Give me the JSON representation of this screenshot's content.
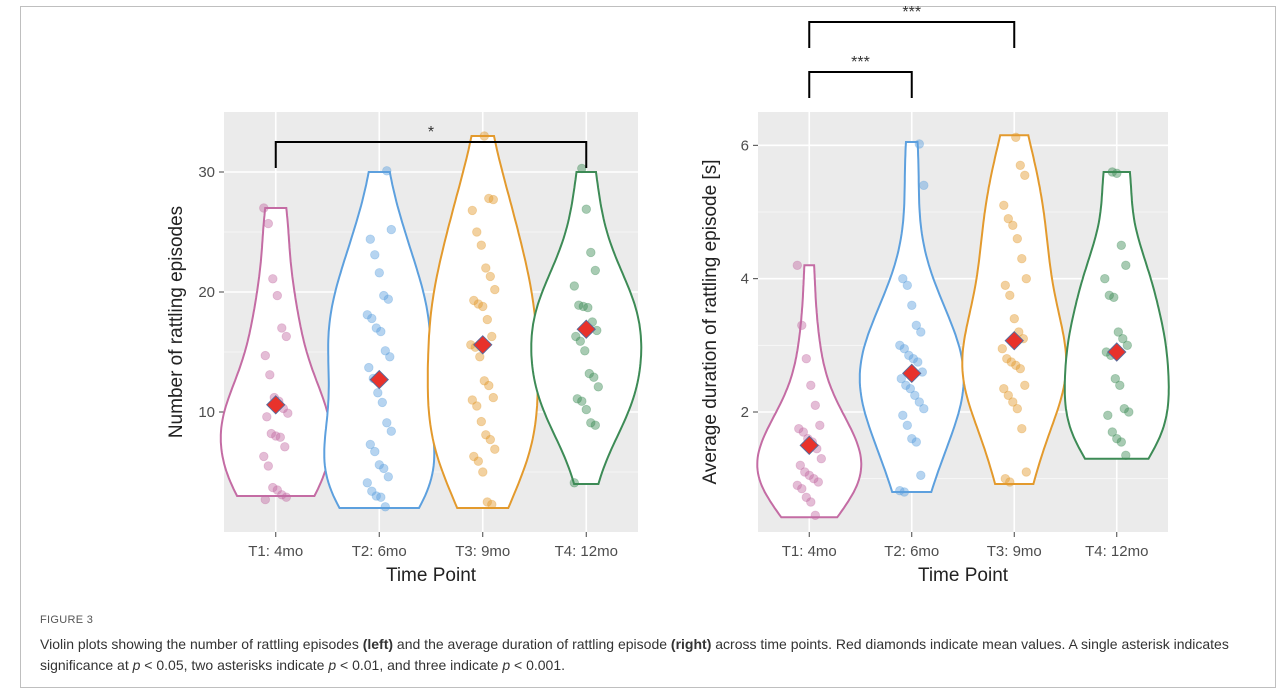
{
  "figure": {
    "label": "FIGURE 3",
    "caption": {
      "p1": "Violin plots showing the number of rattling episodes ",
      "b1": "(left)",
      "p2": " and the average duration of rattling episode ",
      "b2": "(right)",
      "p3": " across time points. Red diamonds indicate mean values. A single asterisk indicates significance at ",
      "v1": "p",
      "p4": " < 0.05, two asterisks indicate ",
      "v2": "p",
      "p5": " < 0.01, and three indicate ",
      "v3": "p",
      "p6": " < 0.001."
    }
  },
  "colors": {
    "panel_bg": "#ebebeb",
    "grid": "#ffffff",
    "mean_marker": "#e8322b",
    "series": [
      "#c46ca4",
      "#5da0de",
      "#e39a2d",
      "#3d8b56"
    ]
  },
  "chart_data": [
    {
      "type": "violin",
      "xlabel": "Time Point",
      "ylabel": "Number of rattling episodes",
      "categories": [
        "T1: 4mo",
        "T2: 6mo",
        "T3: 9mo",
        "T4: 12mo"
      ],
      "ylim": [
        0,
        35
      ],
      "yticks": [
        10,
        20,
        30
      ],
      "grid": true,
      "means": [
        10.6,
        12.7,
        15.6,
        16.9
      ],
      "ranges": [
        [
          3,
          27
        ],
        [
          2,
          30
        ],
        [
          2,
          33
        ],
        [
          4,
          30
        ]
      ],
      "points": [
        [
          27,
          25.7,
          21.1,
          19.7,
          17,
          16.3,
          14.7,
          13.1,
          11.2,
          10.9,
          10.3,
          9.9,
          9.6,
          8.2,
          8,
          7.9,
          7.1,
          6.3,
          5.5,
          3.7,
          3.5,
          3.1,
          2.9,
          2.7
        ],
        [
          30.1,
          25.2,
          24.4,
          23.1,
          21.6,
          19.7,
          19.4,
          18.1,
          17.8,
          17,
          16.7,
          15.1,
          14.6,
          13.7,
          12.8,
          11.6,
          10.8,
          9.1,
          8.4,
          7.3,
          6.7,
          5.6,
          5.3,
          4.6,
          4.1,
          3.4,
          3,
          2.9,
          2.1
        ],
        [
          33,
          27.8,
          27.7,
          26.8,
          25,
          23.9,
          22,
          21.3,
          20.2,
          19.3,
          19,
          18.8,
          17.7,
          16.3,
          15.6,
          15.4,
          14.6,
          12.6,
          12.2,
          11.2,
          11,
          10.5,
          9.2,
          8.1,
          7.7,
          6.9,
          6.3,
          5.9,
          5,
          2.5,
          2.3
        ],
        [
          30.3,
          26.9,
          23.3,
          21.8,
          20.5,
          18.9,
          18.8,
          18.7,
          17.5,
          16.8,
          16.3,
          15.9,
          15.1,
          13.2,
          12.9,
          12.1,
          11.1,
          10.9,
          10.2,
          9.1,
          8.9,
          4.1
        ]
      ],
      "significance": [
        {
          "from": 0,
          "to": 3,
          "y": 32.5,
          "label": "*"
        }
      ]
    },
    {
      "type": "violin",
      "xlabel": "Time Point",
      "ylabel": "Average duration of rattling episode [s]",
      "categories": [
        "T1: 4mo",
        "T2: 6mo",
        "T3: 9mo",
        "T4: 12mo"
      ],
      "ylim": [
        0.2,
        6.5
      ],
      "yticks": [
        2,
        4,
        6
      ],
      "grid": true,
      "means": [
        1.5,
        2.58,
        3.07,
        2.9
      ],
      "ranges": [
        [
          0.42,
          4.2
        ],
        [
          0.8,
          6.05
        ],
        [
          0.92,
          6.15
        ],
        [
          1.3,
          5.6
        ]
      ],
      "points": [
        [
          4.2,
          3.3,
          2.8,
          2.4,
          2.1,
          1.8,
          1.75,
          1.7,
          1.6,
          1.55,
          1.45,
          1.3,
          1.2,
          1.1,
          1.05,
          1,
          0.95,
          0.9,
          0.85,
          0.72,
          0.65,
          0.45
        ],
        [
          6.02,
          5.4,
          4.0,
          3.9,
          3.6,
          3.3,
          3.2,
          3.0,
          2.95,
          2.85,
          2.8,
          2.75,
          2.6,
          2.5,
          2.4,
          2.35,
          2.25,
          2.15,
          2.05,
          1.95,
          1.8,
          1.6,
          1.55,
          1.05,
          0.82,
          0.8
        ],
        [
          6.12,
          5.7,
          5.55,
          5.1,
          4.9,
          4.8,
          4.6,
          4.3,
          4.0,
          3.9,
          3.75,
          3.4,
          3.2,
          3.1,
          2.95,
          2.8,
          2.75,
          2.7,
          2.65,
          2.4,
          2.35,
          2.25,
          2.15,
          2.05,
          1.75,
          1.1,
          1.0,
          0.95
        ],
        [
          5.6,
          5.58,
          4.5,
          4.2,
          4.0,
          3.75,
          3.72,
          3.2,
          3.1,
          3.0,
          2.9,
          2.85,
          2.5,
          2.4,
          2.05,
          2.0,
          1.95,
          1.7,
          1.6,
          1.55,
          1.35
        ]
      ],
      "significance": [
        {
          "from": 0,
          "to": 1,
          "y": 7.1,
          "label": "***"
        },
        {
          "from": 0,
          "to": 2,
          "y": 7.85,
          "label": "***"
        },
        {
          "from": 0,
          "to": 3,
          "y": 8.6,
          "label": "***"
        }
      ]
    }
  ]
}
